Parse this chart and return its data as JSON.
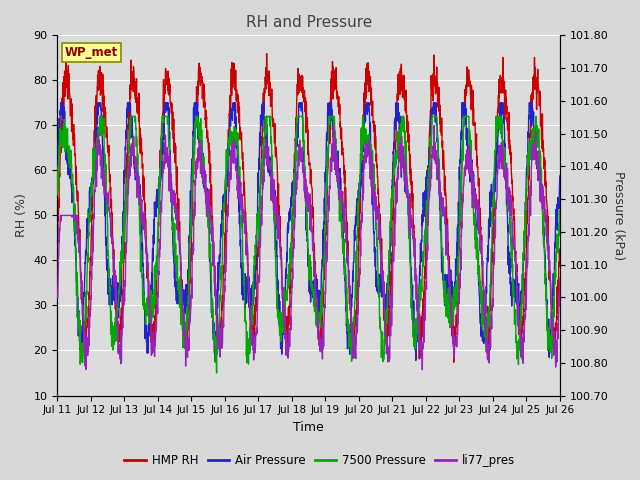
{
  "title": "RH and Pressure",
  "xlabel": "Time",
  "ylabel_left": "RH (%)",
  "ylabel_right": "Pressure (kPa)",
  "ylim_left": [
    10,
    90
  ],
  "ylim_right": [
    100.7,
    101.8
  ],
  "yticks_left": [
    10,
    20,
    30,
    40,
    50,
    60,
    70,
    80,
    90
  ],
  "yticks_right": [
    100.7,
    100.8,
    100.9,
    101.0,
    101.1,
    101.2,
    101.3,
    101.4,
    101.5,
    101.6,
    101.7,
    101.8
  ],
  "x_tick_labels": [
    "Jul 11",
    "Jul 12",
    "Jul 13",
    "Jul 14",
    "Jul 15",
    "Jul 16",
    "Jul 17",
    "Jul 18",
    "Jul 19",
    "Jul 20",
    "Jul 21",
    "Jul 22",
    "Jul 23",
    "Jul 24",
    "Jul 25",
    "Jul 26"
  ],
  "legend_label": "WP_met",
  "series_labels": [
    "HMP RH",
    "Air Pressure",
    "7500 Pressure",
    "li77_pres"
  ],
  "series_colors": [
    "#cc0000",
    "#2222cc",
    "#00aa00",
    "#9922bb"
  ],
  "background_color": "#dcdcdc",
  "grid_color": "#ffffff",
  "title_color": "#444444",
  "line_width": 1.0,
  "fig_bg": "#d8d8d8"
}
